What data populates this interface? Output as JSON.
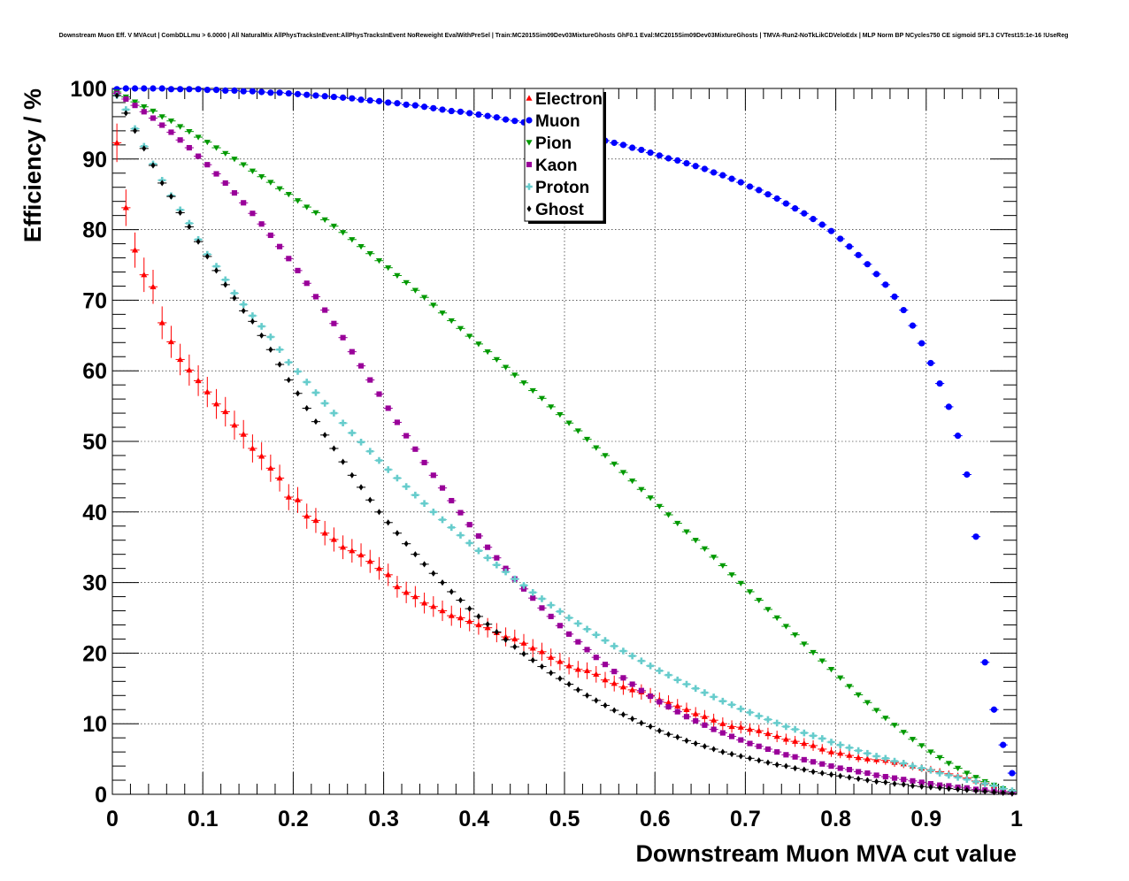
{
  "chart_data": {
    "type": "scatter",
    "title": "Downstream Muon Eff. V MVAcut | CombDLLmu > 6.0000 | All NaturalMix AllPhysTracksInEvent:AllPhysTracksInEvent NoReweight EvalWithPreSel | Train:MC2015Sim09Dev03MixtureGhosts GhF0.1 Eval:MC2015Sim09Dev03MixtureGhosts | TMVA-Run2-NoTkLikCDVeloEdx | MLP Norm BP NCycles750 CE sigmoid SF1.3 CVTest15:1e-16 !UseReg",
    "xlabel": "Downstream Muon MVA cut value",
    "ylabel": "Efficiency / %",
    "xlim": [
      0,
      1
    ],
    "ylim": [
      0,
      100
    ],
    "xticks": [
      "0",
      "0.1",
      "0.2",
      "0.3",
      "0.4",
      "0.5",
      "0.6",
      "0.7",
      "0.8",
      "0.9",
      "1"
    ],
    "yticks": [
      "0",
      "10",
      "20",
      "30",
      "40",
      "50",
      "60",
      "70",
      "80",
      "90",
      "100"
    ],
    "grid": true,
    "legend_position": "top-center",
    "x": [
      0.005,
      0.015,
      0.025,
      0.035,
      0.045,
      0.055,
      0.065,
      0.075,
      0.085,
      0.095,
      0.105,
      0.115,
      0.125,
      0.135,
      0.145,
      0.155,
      0.165,
      0.175,
      0.185,
      0.195,
      0.205,
      0.215,
      0.225,
      0.235,
      0.245,
      0.255,
      0.265,
      0.275,
      0.285,
      0.295,
      0.305,
      0.315,
      0.325,
      0.335,
      0.345,
      0.355,
      0.365,
      0.375,
      0.385,
      0.395,
      0.405,
      0.415,
      0.425,
      0.435,
      0.445,
      0.455,
      0.465,
      0.475,
      0.485,
      0.495,
      0.505,
      0.515,
      0.525,
      0.535,
      0.545,
      0.555,
      0.565,
      0.575,
      0.585,
      0.595,
      0.605,
      0.615,
      0.625,
      0.635,
      0.645,
      0.655,
      0.665,
      0.675,
      0.685,
      0.695,
      0.705,
      0.715,
      0.725,
      0.735,
      0.745,
      0.755,
      0.765,
      0.775,
      0.785,
      0.795,
      0.805,
      0.815,
      0.825,
      0.835,
      0.845,
      0.855,
      0.865,
      0.875,
      0.885,
      0.895,
      0.905,
      0.915,
      0.925,
      0.935,
      0.945,
      0.955,
      0.965,
      0.975,
      0.985,
      0.995
    ],
    "series": [
      {
        "name": "Electron",
        "color": "#ff0000",
        "marker": "triangle-up",
        "x_step": 0.01,
        "x_start": 0.005,
        "values": [
          92.3,
          83.1,
          77.1,
          73.6,
          71.9,
          66.8,
          64.1,
          61.6,
          60.1,
          58.6,
          57.0,
          55.3,
          54.2,
          52.3,
          51.0,
          49.0,
          47.9,
          46.2,
          44.8,
          42.1,
          41.7,
          39.4,
          38.8,
          37.0,
          36.1,
          35.0,
          34.5,
          33.9,
          33.0,
          32.0,
          31.1,
          29.4,
          28.6,
          28.0,
          27.1,
          26.6,
          26.0,
          25.3,
          25.0,
          24.5,
          24.0,
          23.6,
          22.9,
          22.3,
          22.0,
          21.4,
          20.7,
          20.2,
          19.4,
          18.8,
          18.2,
          17.7,
          17.5,
          17.0,
          16.2,
          15.7,
          15.2,
          14.8,
          14.5,
          14.0,
          13.4,
          13.0,
          12.5,
          12.0,
          11.4,
          11.0,
          10.5,
          10.0,
          9.6,
          9.5,
          9.2,
          9.0,
          8.6,
          8.2,
          7.8,
          7.5,
          7.2,
          6.9,
          6.4,
          6.0,
          5.8,
          5.5,
          5.2,
          5.0,
          4.9,
          4.8,
          4.5,
          4.3,
          4.0,
          3.7,
          3.5,
          3.2,
          2.9,
          2.6,
          2.3,
          1.9,
          1.6,
          1.2,
          0.8,
          0.4
        ]
      },
      {
        "name": "Muon",
        "color": "#0000ff",
        "marker": "circle",
        "x_step": 0.01,
        "x_start": 0.005,
        "values": [
          99.9,
          100.0,
          100.0,
          100.0,
          100.0,
          100.0,
          99.9,
          99.9,
          99.9,
          99.9,
          99.8,
          99.8,
          99.7,
          99.7,
          99.6,
          99.6,
          99.5,
          99.4,
          99.4,
          99.3,
          99.2,
          99.1,
          99.0,
          98.9,
          98.8,
          98.7,
          98.6,
          98.4,
          98.3,
          98.2,
          98.0,
          97.9,
          97.7,
          97.6,
          97.4,
          97.2,
          97.0,
          96.8,
          96.7,
          96.5,
          96.3,
          96.1,
          95.9,
          95.6,
          95.4,
          95.2,
          94.9,
          94.7,
          94.4,
          94.1,
          93.8,
          93.5,
          93.2,
          92.9,
          92.6,
          92.3,
          92.0,
          91.6,
          91.3,
          90.9,
          90.5,
          90.1,
          89.8,
          89.4,
          89.0,
          88.6,
          88.1,
          87.7,
          87.2,
          86.7,
          86.1,
          85.6,
          85.0,
          84.4,
          83.7,
          83.0,
          82.3,
          81.5,
          80.7,
          79.8,
          78.7,
          77.6,
          76.4,
          75.1,
          73.7,
          72.2,
          70.5,
          68.6,
          66.4,
          63.9,
          61.1,
          58.2,
          54.9,
          50.8,
          45.3,
          36.5,
          18.7,
          12.0,
          7.0,
          3.0
        ]
      },
      {
        "name": "Pion",
        "color": "#009900",
        "marker": "triangle-down",
        "x_step": 0.01,
        "x_start": 0.005,
        "values": [
          99.5,
          98.8,
          98.1,
          97.4,
          96.8,
          96.0,
          95.4,
          94.6,
          93.9,
          93.1,
          92.4,
          91.6,
          90.8,
          90.0,
          89.2,
          88.3,
          87.5,
          86.7,
          85.8,
          85.0,
          84.1,
          83.2,
          82.4,
          81.4,
          80.5,
          79.6,
          78.6,
          77.6,
          76.6,
          75.6,
          74.6,
          73.5,
          72.5,
          71.4,
          70.4,
          69.3,
          68.2,
          67.1,
          66.0,
          64.9,
          63.8,
          62.7,
          61.6,
          60.5,
          59.4,
          58.3,
          57.2,
          56.1,
          54.9,
          53.8,
          52.6,
          51.5,
          50.3,
          49.1,
          48.0,
          46.8,
          45.6,
          44.4,
          43.2,
          42.0,
          40.8,
          39.6,
          38.4,
          37.2,
          36.0,
          34.8,
          33.6,
          32.4,
          31.1,
          29.9,
          28.7,
          27.5,
          26.2,
          25.0,
          23.8,
          22.6,
          21.3,
          20.1,
          18.9,
          17.7,
          16.5,
          15.3,
          14.1,
          13.0,
          11.9,
          10.8,
          9.8,
          8.8,
          7.8,
          6.9,
          6.0,
          5.2,
          4.4,
          3.7,
          3.0,
          2.4,
          1.8,
          1.3,
          0.8,
          0.4
        ]
      },
      {
        "name": "Kaon",
        "color": "#990099",
        "marker": "square",
        "x_step": 0.01,
        "x_start": 0.005,
        "values": [
          99.3,
          98.5,
          97.6,
          96.7,
          95.8,
          94.8,
          93.8,
          92.7,
          91.6,
          90.4,
          89.2,
          87.9,
          86.6,
          85.2,
          83.8,
          82.3,
          80.8,
          79.2,
          77.6,
          75.9,
          74.2,
          72.4,
          70.5,
          68.6,
          66.7,
          64.7,
          62.7,
          60.7,
          58.7,
          56.7,
          54.7,
          52.7,
          50.8,
          48.9,
          47.0,
          45.2,
          43.4,
          41.6,
          39.9,
          38.2,
          36.6,
          35.0,
          33.5,
          32.0,
          30.5,
          29.1,
          27.8,
          26.4,
          25.2,
          23.9,
          22.7,
          21.6,
          20.5,
          19.4,
          18.4,
          17.4,
          16.5,
          15.6,
          14.7,
          13.9,
          13.1,
          12.4,
          11.7,
          11.0,
          10.4,
          9.8,
          9.2,
          8.7,
          8.2,
          7.7,
          7.2,
          6.8,
          6.4,
          6.0,
          5.6,
          5.3,
          4.9,
          4.6,
          4.3,
          4.0,
          3.7,
          3.5,
          3.2,
          3.0,
          2.7,
          2.5,
          2.3,
          2.1,
          1.9,
          1.7,
          1.5,
          1.3,
          1.2,
          1.0,
          0.9,
          0.7,
          0.6,
          0.5,
          0.4,
          0.3
        ]
      },
      {
        "name": "Proton",
        "color": "#66cccc",
        "marker": "cross",
        "x_step": 0.01,
        "x_start": 0.005,
        "values": [
          99.0,
          97.0,
          94.3,
          91.8,
          89.3,
          87.0,
          84.8,
          82.8,
          80.9,
          78.6,
          76.5,
          74.8,
          72.9,
          71.0,
          69.4,
          67.8,
          66.3,
          64.8,
          63.0,
          61.2,
          59.9,
          58.4,
          56.9,
          55.4,
          54.0,
          52.6,
          51.2,
          49.9,
          48.6,
          47.3,
          46.0,
          44.8,
          43.6,
          42.4,
          41.2,
          40.0,
          38.9,
          37.8,
          36.7,
          35.6,
          34.5,
          33.5,
          32.5,
          31.5,
          30.5,
          29.6,
          28.6,
          27.7,
          26.8,
          25.9,
          25.0,
          24.2,
          23.4,
          22.6,
          21.8,
          21.0,
          20.3,
          19.6,
          18.9,
          18.2,
          17.5,
          16.9,
          16.2,
          15.6,
          15.0,
          14.4,
          13.8,
          13.2,
          12.7,
          12.1,
          11.6,
          11.1,
          10.6,
          10.1,
          9.6,
          9.2,
          8.7,
          8.3,
          7.9,
          7.4,
          7.0,
          6.6,
          6.2,
          5.8,
          5.4,
          5.1,
          4.7,
          4.4,
          4.0,
          3.7,
          3.4,
          3.0,
          2.7,
          2.4,
          2.1,
          1.8,
          1.5,
          1.2,
          0.8,
          0.5
        ]
      },
      {
        "name": "Ghost",
        "color": "#000000",
        "marker": "diamond",
        "x_step": 0.01,
        "x_start": 0.005,
        "values": [
          99.0,
          96.5,
          94.0,
          91.5,
          89.1,
          86.6,
          84.7,
          82.4,
          80.4,
          78.3,
          76.2,
          74.2,
          72.2,
          70.3,
          68.5,
          67.0,
          65.0,
          63.0,
          60.9,
          58.7,
          56.8,
          54.7,
          52.8,
          50.9,
          49.0,
          47.1,
          45.2,
          43.5,
          41.7,
          40.0,
          38.5,
          37.0,
          35.5,
          34.0,
          32.6,
          31.3,
          30.0,
          28.7,
          27.5,
          26.3,
          25.2,
          24.1,
          23.0,
          21.9,
          20.9,
          19.9,
          19.0,
          18.1,
          17.2,
          16.4,
          15.6,
          14.8,
          14.0,
          13.3,
          12.6,
          11.9,
          11.3,
          10.7,
          10.1,
          9.6,
          9.0,
          8.5,
          8.1,
          7.6,
          7.2,
          6.8,
          6.4,
          6.0,
          5.7,
          5.4,
          5.1,
          4.8,
          4.5,
          4.2,
          4.0,
          3.7,
          3.5,
          3.2,
          3.0,
          2.8,
          2.6,
          2.4,
          2.2,
          2.0,
          1.8,
          1.7,
          1.5,
          1.4,
          1.2,
          1.1,
          1.0,
          0.9,
          0.8,
          0.7,
          0.6,
          0.5,
          0.4,
          0.3,
          0.2,
          0.1
        ]
      }
    ]
  }
}
